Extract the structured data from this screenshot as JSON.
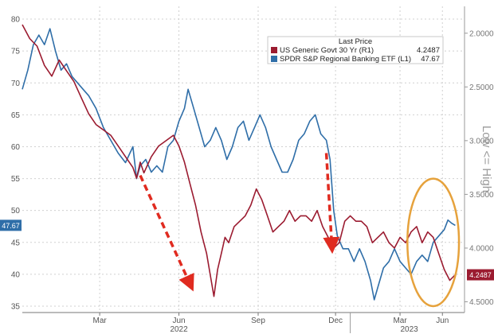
{
  "chart_data": {
    "type": "line",
    "left_axis": {
      "ticks": [
        35,
        40,
        45,
        50,
        55,
        60,
        65,
        70,
        75,
        80
      ],
      "range": [
        34,
        82
      ]
    },
    "right_axis": {
      "ticks": [
        "2.0000",
        "2.5000",
        "3.0000",
        "3.5000",
        "4.0000",
        "4.5000"
      ],
      "range": [
        1.75,
        4.6
      ],
      "inverted": true
    },
    "x_ticks": [
      "Mar",
      "Jun",
      "Sep",
      "Dec",
      "Mar",
      "Jun"
    ],
    "x_years": [
      "2022",
      "2023"
    ],
    "side_label": "Low <= High",
    "legend": {
      "title": "Last Price",
      "items": [
        {
          "name": "US Generic Govt 30 Yr  (R1)",
          "value": "4.2487",
          "color": "#9b1b30"
        },
        {
          "name": "SPDR S&P Regional Banking ETF  (L1)",
          "value": "47.67",
          "color": "#2f6ea8"
        }
      ]
    },
    "last_value_tags": {
      "left": "47.67",
      "right": "4.2487"
    },
    "series": [
      {
        "name": "SPDR S&P Regional Banking ETF",
        "axis": "left",
        "color": "#2f6ea8",
        "values": [
          [
            0,
            69
          ],
          [
            3,
            72
          ],
          [
            6,
            76
          ],
          [
            9,
            77.5
          ],
          [
            12,
            76
          ],
          [
            15,
            78.5
          ],
          [
            18,
            75
          ],
          [
            21,
            72
          ],
          [
            24,
            73
          ],
          [
            27,
            71
          ],
          [
            30,
            70
          ],
          [
            33,
            69
          ],
          [
            36,
            68
          ],
          [
            40,
            66
          ],
          [
            44,
            63
          ],
          [
            48,
            61
          ],
          [
            52,
            59
          ],
          [
            56,
            57.5
          ],
          [
            60,
            60
          ],
          [
            62,
            55
          ],
          [
            64,
            57
          ],
          [
            67,
            58
          ],
          [
            70,
            56
          ],
          [
            73,
            57
          ],
          [
            76,
            56
          ],
          [
            79,
            60
          ],
          [
            82,
            61
          ],
          [
            85,
            64
          ],
          [
            88,
            66
          ],
          [
            90,
            69
          ],
          [
            93,
            66
          ],
          [
            96,
            63
          ],
          [
            99,
            60
          ],
          [
            102,
            61
          ],
          [
            105,
            63
          ],
          [
            108,
            61
          ],
          [
            111,
            58
          ],
          [
            114,
            60
          ],
          [
            117,
            63
          ],
          [
            120,
            64
          ],
          [
            123,
            61
          ],
          [
            126,
            63
          ],
          [
            129,
            65
          ],
          [
            132,
            63
          ],
          [
            135,
            60
          ],
          [
            138,
            58
          ],
          [
            141,
            56
          ],
          [
            144,
            56
          ],
          [
            147,
            58
          ],
          [
            150,
            61
          ],
          [
            153,
            62
          ],
          [
            156,
            64
          ],
          [
            159,
            65
          ],
          [
            162,
            62
          ],
          [
            165,
            61
          ],
          [
            167,
            58
          ],
          [
            169,
            50
          ],
          [
            171,
            46
          ],
          [
            174,
            44
          ],
          [
            177,
            44
          ],
          [
            180,
            42
          ],
          [
            183,
            44
          ],
          [
            186,
            42
          ],
          [
            189,
            39
          ],
          [
            191,
            36
          ],
          [
            193,
            38
          ],
          [
            196,
            41
          ],
          [
            199,
            42
          ],
          [
            202,
            44
          ],
          [
            205,
            42
          ],
          [
            208,
            41
          ],
          [
            211,
            40
          ],
          [
            214,
            42
          ],
          [
            217,
            43
          ],
          [
            220,
            42
          ],
          [
            223,
            45
          ],
          [
            226,
            46
          ],
          [
            229,
            47
          ],
          [
            231,
            48.5
          ],
          [
            233,
            48
          ],
          [
            235,
            47.67
          ]
        ]
      },
      {
        "name": "US Generic Govt 30 Yr",
        "axis": "right",
        "color": "#9b1b30",
        "values": [
          [
            0,
            1.92
          ],
          [
            4,
            2.05
          ],
          [
            8,
            2.12
          ],
          [
            12,
            2.3
          ],
          [
            16,
            2.4
          ],
          [
            20,
            2.25
          ],
          [
            24,
            2.35
          ],
          [
            28,
            2.45
          ],
          [
            32,
            2.6
          ],
          [
            36,
            2.75
          ],
          [
            40,
            2.85
          ],
          [
            44,
            2.9
          ],
          [
            48,
            2.95
          ],
          [
            52,
            3.05
          ],
          [
            56,
            3.15
          ],
          [
            60,
            3.25
          ],
          [
            62,
            3.35
          ],
          [
            64,
            3.2
          ],
          [
            66,
            3.3
          ],
          [
            70,
            3.15
          ],
          [
            74,
            3.05
          ],
          [
            78,
            3.0
          ],
          [
            82,
            2.95
          ],
          [
            85,
            3.05
          ],
          [
            88,
            3.2
          ],
          [
            91,
            3.4
          ],
          [
            94,
            3.6
          ],
          [
            97,
            3.85
          ],
          [
            100,
            4.05
          ],
          [
            102,
            4.25
          ],
          [
            104,
            4.45
          ],
          [
            106,
            4.2
          ],
          [
            108,
            4.05
          ],
          [
            110,
            3.9
          ],
          [
            112,
            3.95
          ],
          [
            115,
            3.8
          ],
          [
            118,
            3.75
          ],
          [
            121,
            3.7
          ],
          [
            124,
            3.6
          ],
          [
            127,
            3.45
          ],
          [
            130,
            3.55
          ],
          [
            133,
            3.7
          ],
          [
            136,
            3.85
          ],
          [
            139,
            3.8
          ],
          [
            142,
            3.75
          ],
          [
            145,
            3.65
          ],
          [
            148,
            3.75
          ],
          [
            151,
            3.7
          ],
          [
            154,
            3.7
          ],
          [
            157,
            3.75
          ],
          [
            160,
            3.65
          ],
          [
            163,
            3.8
          ],
          [
            166,
            3.9
          ],
          [
            169,
            4.0
          ],
          [
            172,
            3.95
          ],
          [
            175,
            3.75
          ],
          [
            178,
            3.7
          ],
          [
            181,
            3.75
          ],
          [
            184,
            3.75
          ],
          [
            187,
            3.8
          ],
          [
            190,
            3.95
          ],
          [
            193,
            3.9
          ],
          [
            196,
            3.85
          ],
          [
            199,
            3.95
          ],
          [
            202,
            4.0
          ],
          [
            205,
            3.9
          ],
          [
            208,
            3.95
          ],
          [
            211,
            3.85
          ],
          [
            214,
            3.8
          ],
          [
            217,
            3.95
          ],
          [
            220,
            3.85
          ],
          [
            223,
            3.9
          ],
          [
            226,
            4.05
          ],
          [
            229,
            4.2
          ],
          [
            232,
            4.3
          ],
          [
            235,
            4.2487
          ]
        ]
      }
    ],
    "annotations": [
      {
        "type": "arrow",
        "style": "dashed",
        "color": "#e02b20",
        "from": [
          64,
          55.5
        ],
        "to": [
          91,
          38.5
        ]
      },
      {
        "type": "arrow",
        "style": "dashed",
        "color": "#e02b20",
        "from": [
          165,
          59
        ],
        "to": [
          168,
          44.5
        ]
      },
      {
        "type": "ellipse",
        "color": "#e6a23c",
        "center": [
          223,
          45
        ],
        "rx": 14,
        "ry": 10
      }
    ],
    "grid": true
  }
}
